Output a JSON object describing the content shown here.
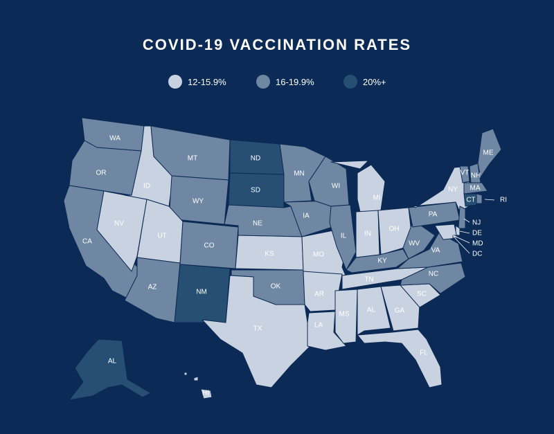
{
  "title": "COVID-19 VACCINATION RATES",
  "colors": {
    "background": "#0b2a55",
    "low": "#c9d2e0",
    "mid": "#6f87a3",
    "high": "#264f73"
  },
  "legend": [
    {
      "label": "12-15.9%",
      "category": "low"
    },
    {
      "label": "16-19.9%",
      "category": "mid"
    },
    {
      "label": "20%+",
      "category": "high"
    }
  ],
  "states": [
    {
      "abbr": "WA",
      "category": "mid"
    },
    {
      "abbr": "OR",
      "category": "mid"
    },
    {
      "abbr": "CA",
      "category": "mid"
    },
    {
      "abbr": "NV",
      "category": "low"
    },
    {
      "abbr": "ID",
      "category": "low"
    },
    {
      "abbr": "MT",
      "category": "mid"
    },
    {
      "abbr": "WY",
      "category": "mid"
    },
    {
      "abbr": "UT",
      "category": "low"
    },
    {
      "abbr": "AZ",
      "category": "mid"
    },
    {
      "abbr": "CO",
      "category": "mid"
    },
    {
      "abbr": "NM",
      "category": "high"
    },
    {
      "abbr": "ND",
      "category": "high"
    },
    {
      "abbr": "SD",
      "category": "high"
    },
    {
      "abbr": "NE",
      "category": "mid"
    },
    {
      "abbr": "KS",
      "category": "low"
    },
    {
      "abbr": "OK",
      "category": "mid"
    },
    {
      "abbr": "TX",
      "category": "low"
    },
    {
      "abbr": "MN",
      "category": "mid"
    },
    {
      "abbr": "IA",
      "category": "mid"
    },
    {
      "abbr": "MO",
      "category": "low"
    },
    {
      "abbr": "AR",
      "category": "low"
    },
    {
      "abbr": "LA",
      "category": "low"
    },
    {
      "abbr": "WI",
      "category": "mid"
    },
    {
      "abbr": "IL",
      "category": "mid"
    },
    {
      "abbr": "MI",
      "category": "low"
    },
    {
      "abbr": "IN",
      "category": "low"
    },
    {
      "abbr": "OH",
      "category": "low"
    },
    {
      "abbr": "KY",
      "category": "mid"
    },
    {
      "abbr": "TN",
      "category": "low"
    },
    {
      "abbr": "MS",
      "category": "low"
    },
    {
      "abbr": "AL",
      "category": "low"
    },
    {
      "abbr": "GA",
      "category": "low"
    },
    {
      "abbr": "FL",
      "category": "low"
    },
    {
      "abbr": "SC",
      "category": "low"
    },
    {
      "abbr": "NC",
      "category": "mid"
    },
    {
      "abbr": "VA",
      "category": "mid"
    },
    {
      "abbr": "WV",
      "category": "mid"
    },
    {
      "abbr": "PA",
      "category": "mid"
    },
    {
      "abbr": "NY",
      "category": "low"
    },
    {
      "abbr": "VT",
      "category": "mid"
    },
    {
      "abbr": "NH",
      "category": "mid"
    },
    {
      "abbr": "ME",
      "category": "mid"
    },
    {
      "abbr": "MA",
      "category": "mid"
    },
    {
      "abbr": "CT",
      "category": "high"
    },
    {
      "abbr": "RI",
      "category": "mid"
    },
    {
      "abbr": "NJ",
      "category": "mid"
    },
    {
      "abbr": "DE",
      "category": "low"
    },
    {
      "abbr": "MD",
      "category": "low"
    },
    {
      "abbr": "DC",
      "category": "low"
    },
    {
      "abbr": "AK",
      "label": "AL",
      "category": "high"
    },
    {
      "abbr": "HI",
      "category": "low"
    }
  ]
}
